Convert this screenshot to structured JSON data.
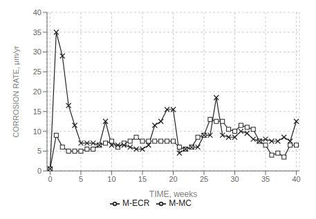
{
  "chart_data": {
    "type": "line",
    "xlabel": "TIME, weeks",
    "ylabel": "CORROSION RATE, μm/yr",
    "x": [
      0,
      1,
      2,
      3,
      4,
      5,
      6,
      7,
      8,
      9,
      10,
      11,
      12,
      13,
      14,
      15,
      16,
      17,
      18,
      19,
      20,
      21,
      22,
      23,
      24,
      25,
      26,
      27,
      28,
      29,
      30,
      31,
      32,
      33,
      34,
      35,
      36,
      37,
      38,
      39,
      40
    ],
    "series": [
      {
        "name": "M-ECR",
        "color": "#222222",
        "marker": "square",
        "values": [
          0.5,
          9.0,
          6.0,
          5.0,
          5.0,
          5.0,
          5.5,
          5.5,
          6.5,
          7.0,
          7.5,
          6.0,
          7.0,
          7.5,
          8.5,
          7.5,
          7.5,
          7.5,
          7.5,
          7.5,
          7.5,
          6.0,
          5.5,
          6.0,
          8.5,
          9.0,
          13.0,
          12.5,
          12.5,
          10.5,
          10.0,
          11.5,
          11.0,
          10.5,
          7.5,
          6.5,
          4.0,
          4.5,
          3.5,
          6.5,
          6.5
        ]
      },
      {
        "name": "M-MC",
        "color": "#222222",
        "marker": "x",
        "values": [
          0.5,
          35.0,
          29.0,
          16.5,
          11.5,
          7.0,
          7.0,
          7.0,
          6.5,
          12.5,
          6.5,
          6.5,
          6.5,
          6.0,
          5.5,
          5.5,
          6.5,
          11.5,
          12.5,
          15.5,
          15.5,
          4.5,
          5.5,
          6.0,
          6.0,
          9.0,
          9.0,
          18.5,
          9.0,
          8.5,
          8.5,
          10.0,
          9.5,
          8.0,
          7.5,
          8.0,
          7.5,
          7.5,
          8.5,
          7.5,
          12.5
        ]
      }
    ],
    "xlim": [
      -0.5,
      40.5
    ],
    "ylim": [
      0.0,
      40.0
    ],
    "xticks": [
      0,
      5,
      10,
      15,
      20,
      25,
      30,
      35,
      40
    ],
    "yticks": [
      0.0,
      5.0,
      10.0,
      15.0,
      20.0,
      25.0,
      30.0,
      35.0,
      40.0
    ],
    "grid": true,
    "legend": "bottom"
  }
}
